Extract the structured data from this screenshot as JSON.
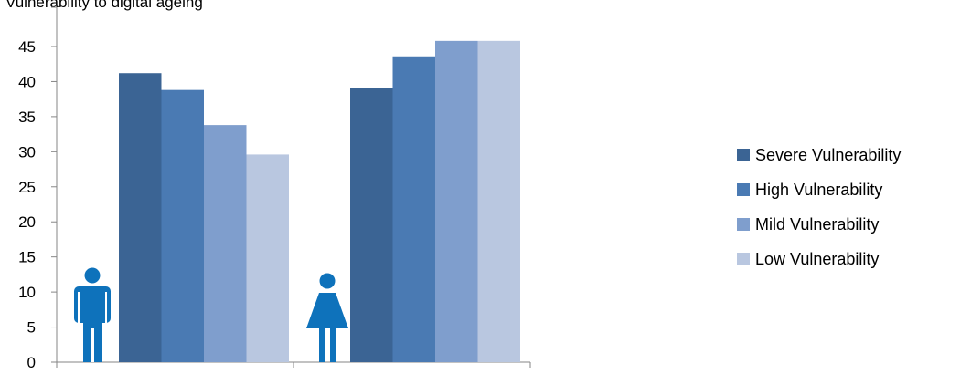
{
  "title": "Vulnerability to digital ageing",
  "chart_data": {
    "type": "bar",
    "categories": [
      "Male",
      "Female"
    ],
    "series": [
      {
        "name": "Severe Vulnerability",
        "values": [
          41.2,
          39.1
        ]
      },
      {
        "name": "High Vulnerability",
        "values": [
          38.8,
          43.6
        ]
      },
      {
        "name": "Mild Vulnerability",
        "values": [
          33.8,
          45.8
        ]
      },
      {
        "name": "Low Vulnerability",
        "values": [
          29.6,
          45.8
        ]
      }
    ],
    "colors": [
      "#3b6494",
      "#4a7ab3",
      "#7f9ecd",
      "#b9c7e0"
    ],
    "icon_color": "#0e72bb",
    "category_icons": [
      "male-person-icon",
      "female-person-icon"
    ],
    "yticks": [
      "0",
      "5",
      "10",
      "15",
      "20",
      "25",
      "30",
      "35",
      "40",
      "45"
    ],
    "ylim": [
      0,
      50
    ],
    "legend_position": "right",
    "grid": false
  }
}
